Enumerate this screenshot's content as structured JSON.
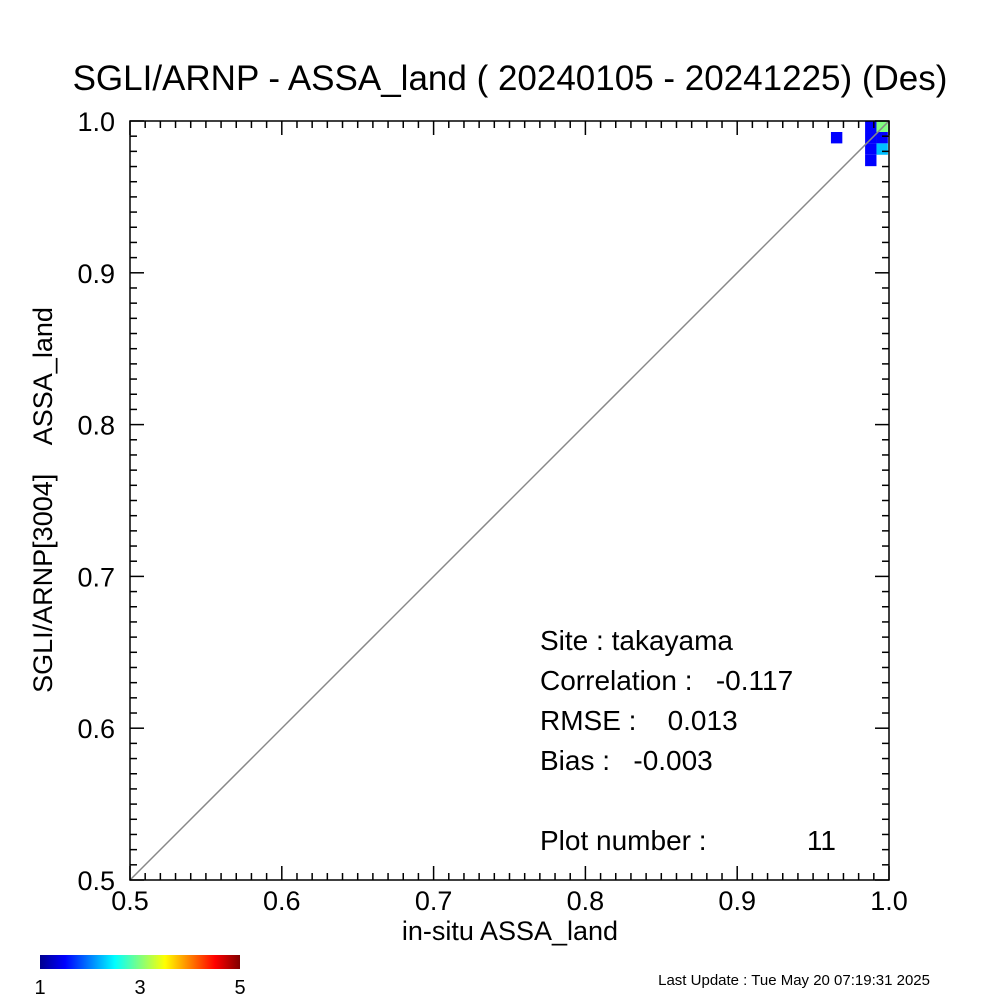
{
  "chart_data": {
    "type": "heatmap",
    "title": "SGLI/ARNP - ASSA_land ( 20240105 - 20241225) (Des)",
    "xlabel": "in-situ ASSA_land",
    "ylabel": "SGLI/ARNP[3004]    ASSA_land",
    "xlim": [
      0.5,
      1.0
    ],
    "ylim": [
      0.5,
      1.0
    ],
    "x_ticks": [
      "0.5",
      "0.6",
      "0.7",
      "0.8",
      "0.9",
      "1.0"
    ],
    "y_ticks": [
      "0.5",
      "0.6",
      "0.7",
      "0.8",
      "0.9",
      "1.0"
    ],
    "one_to_one_line": true,
    "bin_size": 0.0075,
    "cells": [
      {
        "x": 0.9655,
        "y": 0.989,
        "count": 1
      },
      {
        "x": 0.988,
        "y": 0.9965,
        "count": 1
      },
      {
        "x": 0.988,
        "y": 0.989,
        "count": 1
      },
      {
        "x": 0.988,
        "y": 0.9815,
        "count": 1
      },
      {
        "x": 0.988,
        "y": 0.974,
        "count": 1
      },
      {
        "x": 0.9955,
        "y": 0.9965,
        "count": 3
      },
      {
        "x": 0.9955,
        "y": 0.989,
        "count": 1
      },
      {
        "x": 0.9955,
        "y": 0.9815,
        "count": 2
      }
    ],
    "colorbar": {
      "min": 1,
      "max": 5,
      "ticks": [
        "1",
        "3",
        "5"
      ],
      "colormap": "jet"
    },
    "stats": {
      "site": "Site : takayama",
      "correlation": "Correlation :   -0.117",
      "rmse": "RMSE :    0.013",
      "bias": "Bias :   -0.003",
      "plot_number": "Plot number :",
      "plot_number_value": "11"
    }
  },
  "footer": {
    "last_update": "Last Update : Tue May 20 07:19:31 2025"
  }
}
